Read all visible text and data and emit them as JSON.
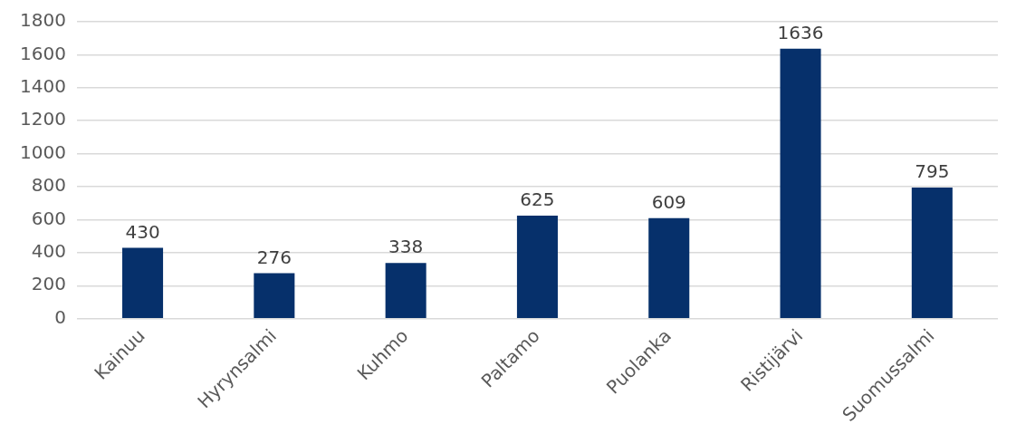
{
  "chart_data": {
    "type": "bar",
    "categories": [
      "Kainuu",
      "Hyrynsalmi",
      "Kuhmo",
      "Paltamo",
      "Puolanka",
      "Ristijärvi",
      "Suomussalmi"
    ],
    "values": [
      430,
      276,
      338,
      625,
      609,
      1636,
      795
    ],
    "color": "#06306b",
    "ylim": [
      0,
      1800
    ],
    "yticks": [
      0,
      200,
      400,
      600,
      800,
      1000,
      1200,
      1400,
      1600,
      1800
    ],
    "grid": "y",
    "data_labels": true,
    "legend": false
  }
}
